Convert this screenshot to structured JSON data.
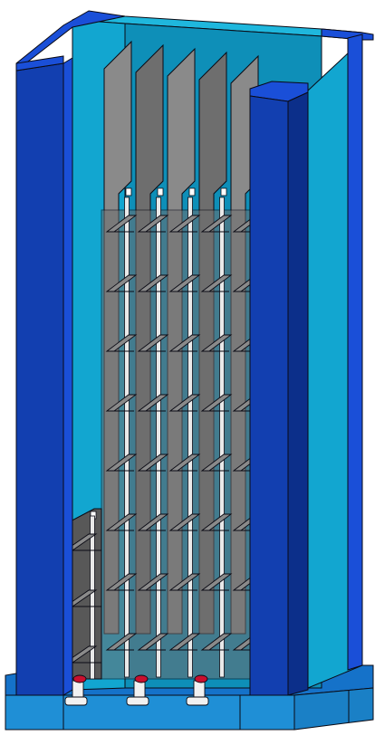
{
  "colors": {
    "background": "#ffffff",
    "outline": "#0a0a14",
    "frame_dark": "#123fb0",
    "frame_darker": "#0c2f8a",
    "frame_edge": "#1a4fd8",
    "liner_light": "#12a6d0",
    "liner_mid": "#0e8fb8",
    "liner_top": "#1fb7dd",
    "base_top": "#1572c9",
    "base_front": "#1f8fd6",
    "plate_gray": "#6e6e6e",
    "plate_gray_light": "#8a8a8a",
    "plate_gray_dark": "#585858",
    "rod_white": "#e9e9e9",
    "valve_red": "#c8102e",
    "fitting_silver": "#f1f1f1"
  },
  "model": {
    "plate_columns": 5,
    "upper_shelf_rows": 8,
    "lower_shelf_rows": 3,
    "outlet_valves": 3
  }
}
